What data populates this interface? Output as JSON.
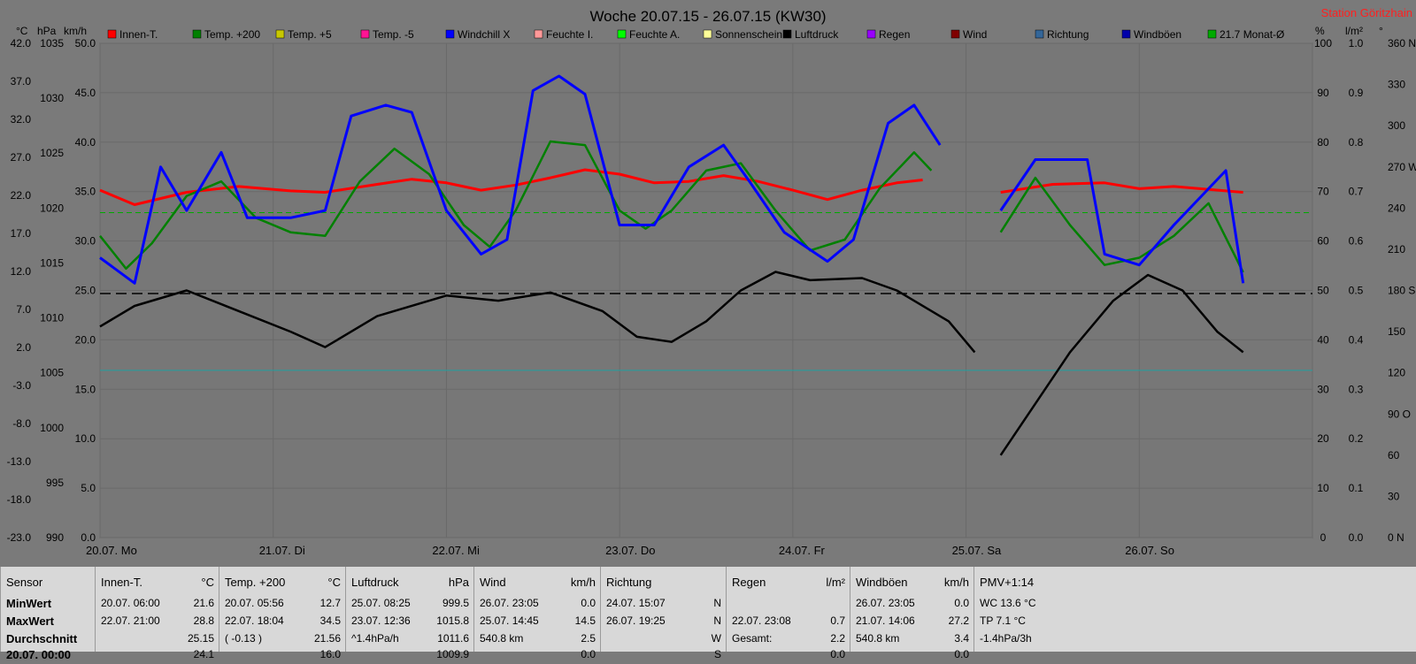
{
  "chart_data": {
    "type": "line",
    "title": "Woche 20.07.15 - 26.07.15 (KW30)",
    "station": "Station Göritzhain",
    "axis_units": {
      "left1": "°C",
      "left2": "hPa",
      "left3": "km/h",
      "right1": "%",
      "right2": "l/m²",
      "right3": "°"
    },
    "left_temp_ticks": [
      "42.0",
      "37.0",
      "32.0",
      "27.0",
      "22.0",
      "17.0",
      "12.0",
      "7.0",
      "2.0",
      "-3.0",
      "-8.0",
      "-13.0",
      "-18.0",
      "-23.0"
    ],
    "left_hpa_ticks": [
      "1035",
      "1030",
      "1025",
      "1020",
      "1015",
      "1010",
      "1005",
      "1000",
      "995",
      "990"
    ],
    "left_kmh_ticks": [
      "50.0",
      "45.0",
      "40.0",
      "35.0",
      "30.0",
      "25.0",
      "20.0",
      "15.0",
      "10.0",
      "5.0",
      "0.0"
    ],
    "right_pct_ticks": [
      "100",
      "90",
      "80",
      "70",
      "60",
      "50",
      "40",
      "30",
      "20",
      "10",
      "0"
    ],
    "right_rain_ticks": [
      "1.0",
      "0.9",
      "0.8",
      "0.7",
      "0.6",
      "0.5",
      "0.4",
      "0.3",
      "0.2",
      "0.1",
      "0.0"
    ],
    "right_dir_ticks": [
      "360 N",
      "330",
      "300",
      "270 W",
      "240",
      "210",
      "180 S",
      "150",
      "120",
      "90 O",
      "60",
      "30",
      "0 N"
    ],
    "x_labels": [
      "20.07. Mo",
      "21.07. Di",
      "22.07. Mi",
      "23.07. Do",
      "24.07. Fr",
      "25.07. Sa",
      "26.07. So"
    ],
    "temp_range": [
      -23,
      45
    ],
    "hpa_range": [
      990,
      1038
    ],
    "ref_lines": {
      "monthly_mean_temp": 21.7,
      "hpa_mean": 1013.7,
      "temp_zero": 0
    },
    "legend": [
      {
        "name": "Innen-T.",
        "color": "#ff0000"
      },
      {
        "name": "Temp. +200",
        "color": "#008000"
      },
      {
        "name": "Temp. +5",
        "color": "#c8c800"
      },
      {
        "name": "Temp. -5",
        "color": "#ff1493"
      },
      {
        "name": "Windchill X",
        "color": "#0000ff"
      },
      {
        "name": "Feuchte I.",
        "color": "#ff9999"
      },
      {
        "name": "Feuchte A.",
        "color": "#00ff00"
      },
      {
        "name": "Sonnenschein",
        "color": "#ffff99"
      },
      {
        "name": "Luftdruck",
        "color": "#000000"
      },
      {
        "name": "Regen",
        "color": "#9900ff"
      },
      {
        "name": "Wind",
        "color": "#800000"
      },
      {
        "name": "Richtung",
        "color": "#336699"
      },
      {
        "name": "Windböen",
        "color": "#0000aa"
      },
      {
        "name": "21.7 Monat-Ø",
        "color": "#00aa00"
      }
    ],
    "series": [
      {
        "name": "Innen-T.",
        "unit": "°C",
        "points": [
          [
            0,
            24.8
          ],
          [
            0.2,
            22.8
          ],
          [
            0.5,
            24.5
          ],
          [
            0.8,
            25.3
          ],
          [
            1.1,
            24.7
          ],
          [
            1.3,
            24.5
          ],
          [
            1.6,
            25.6
          ],
          [
            1.8,
            26.3
          ],
          [
            2.0,
            25.8
          ],
          [
            2.2,
            24.8
          ],
          [
            2.4,
            25.5
          ],
          [
            2.6,
            26.5
          ],
          [
            2.8,
            27.6
          ],
          [
            3.0,
            27.0
          ],
          [
            3.2,
            25.8
          ],
          [
            3.4,
            26.0
          ],
          [
            3.6,
            26.8
          ],
          [
            3.8,
            26.0
          ],
          [
            4.0,
            24.8
          ],
          [
            4.2,
            23.5
          ],
          [
            4.4,
            24.8
          ],
          [
            4.6,
            25.8
          ],
          [
            4.75,
            26.2
          ],
          [
            5.2,
            null
          ],
          [
            5.2,
            24.5
          ],
          [
            5.5,
            25.6
          ],
          [
            5.8,
            25.8
          ],
          [
            6.0,
            25.0
          ],
          [
            6.2,
            25.3
          ],
          [
            6.5,
            24.7
          ],
          [
            6.6,
            24.5
          ]
        ]
      },
      {
        "name": "Temp. +200",
        "unit": "°C",
        "points": [
          [
            0,
            18.5
          ],
          [
            0.15,
            14.0
          ],
          [
            0.3,
            17.5
          ],
          [
            0.5,
            24.0
          ],
          [
            0.7,
            26.0
          ],
          [
            0.9,
            21.0
          ],
          [
            1.1,
            19.0
          ],
          [
            1.3,
            18.5
          ],
          [
            1.5,
            26.0
          ],
          [
            1.7,
            30.5
          ],
          [
            1.9,
            27.0
          ],
          [
            2.1,
            20.0
          ],
          [
            2.25,
            17.0
          ],
          [
            2.4,
            22.0
          ],
          [
            2.6,
            31.5
          ],
          [
            2.8,
            31.0
          ],
          [
            3.0,
            22.0
          ],
          [
            3.15,
            19.5
          ],
          [
            3.3,
            22.0
          ],
          [
            3.5,
            27.5
          ],
          [
            3.7,
            28.5
          ],
          [
            3.9,
            22.0
          ],
          [
            4.1,
            16.5
          ],
          [
            4.3,
            18.0
          ],
          [
            4.5,
            25.0
          ],
          [
            4.7,
            30.0
          ],
          [
            4.8,
            27.5
          ],
          [
            5.2,
            null
          ],
          [
            5.2,
            19.0
          ],
          [
            5.4,
            26.5
          ],
          [
            5.6,
            20.0
          ],
          [
            5.8,
            14.5
          ],
          [
            6.0,
            15.5
          ],
          [
            6.2,
            18.5
          ],
          [
            6.4,
            23.0
          ],
          [
            6.6,
            13.5
          ]
        ]
      },
      {
        "name": "Windchill X",
        "unit": "°C",
        "points": [
          [
            0,
            15.5
          ],
          [
            0.2,
            12.0
          ],
          [
            0.35,
            28.0
          ],
          [
            0.5,
            22.0
          ],
          [
            0.7,
            30.0
          ],
          [
            0.85,
            21.0
          ],
          [
            1.1,
            21.0
          ],
          [
            1.3,
            22.0
          ],
          [
            1.45,
            35.0
          ],
          [
            1.65,
            36.5
          ],
          [
            1.8,
            35.5
          ],
          [
            2.0,
            22.0
          ],
          [
            2.2,
            16.0
          ],
          [
            2.35,
            18.0
          ],
          [
            2.5,
            38.5
          ],
          [
            2.65,
            40.5
          ],
          [
            2.8,
            38.0
          ],
          [
            3.0,
            20.0
          ],
          [
            3.2,
            20.0
          ],
          [
            3.4,
            28.0
          ],
          [
            3.6,
            31.0
          ],
          [
            3.75,
            26.0
          ],
          [
            3.95,
            19.0
          ],
          [
            4.2,
            15.0
          ],
          [
            4.35,
            18.0
          ],
          [
            4.55,
            34.0
          ],
          [
            4.7,
            36.5
          ],
          [
            4.85,
            31.0
          ],
          [
            5.2,
            null
          ],
          [
            5.2,
            22.0
          ],
          [
            5.4,
            29.0
          ],
          [
            5.7,
            29.0
          ],
          [
            5.8,
            16.0
          ],
          [
            6.0,
            14.5
          ],
          [
            6.2,
            20.0
          ],
          [
            6.4,
            25.0
          ],
          [
            6.5,
            27.5
          ],
          [
            6.6,
            12.0
          ]
        ]
      },
      {
        "name": "Luftdruck",
        "unit": "hPa",
        "points": [
          [
            0,
            1010.5
          ],
          [
            0.2,
            1012.5
          ],
          [
            0.5,
            1014
          ],
          [
            0.8,
            1012
          ],
          [
            1.1,
            1010
          ],
          [
            1.3,
            1008.5
          ],
          [
            1.6,
            1011.5
          ],
          [
            2.0,
            1013.5
          ],
          [
            2.3,
            1013
          ],
          [
            2.6,
            1013.8
          ],
          [
            2.9,
            1012
          ],
          [
            3.1,
            1009.5
          ],
          [
            3.3,
            1009
          ],
          [
            3.5,
            1011
          ],
          [
            3.7,
            1014
          ],
          [
            3.9,
            1015.8
          ],
          [
            4.1,
            1015
          ],
          [
            4.4,
            1015.2
          ],
          [
            4.6,
            1014
          ],
          [
            4.9,
            1011
          ],
          [
            5.05,
            1008
          ],
          [
            5.2,
            null
          ],
          [
            5.2,
            998
          ],
          [
            5.4,
            1003
          ],
          [
            5.6,
            1008
          ],
          [
            5.85,
            1013
          ],
          [
            6.05,
            1015.5
          ],
          [
            6.25,
            1014
          ],
          [
            6.45,
            1010
          ],
          [
            6.6,
            1008
          ]
        ]
      }
    ]
  },
  "table": {
    "columns": [
      {
        "title": "Sensor",
        "unit": "",
        "rows": [
          [
            "MinWert",
            ""
          ],
          [
            "MaxWert",
            ""
          ],
          [
            "Durchschnitt",
            ""
          ],
          [
            "20.07. 00:00",
            ""
          ]
        ]
      },
      {
        "title": "Innen-T.",
        "unit": "°C",
        "rows": [
          [
            "20.07.  06:00",
            "21.6"
          ],
          [
            "22.07.  21:00",
            "28.8"
          ],
          [
            "",
            "25.15"
          ],
          [
            "",
            "24.1"
          ]
        ]
      },
      {
        "title": "Temp. +200",
        "unit": "°C",
        "rows": [
          [
            "20.07.  05:56",
            "12.7"
          ],
          [
            "22.07.  18:04",
            "34.5"
          ],
          [
            "( -0.13 )",
            "21.56"
          ],
          [
            "",
            "16.0"
          ]
        ]
      },
      {
        "title": "Luftdruck",
        "unit": "hPa",
        "rows": [
          [
            "25.07.  08:25",
            "999.5"
          ],
          [
            "23.07.  12:36",
            "1015.8"
          ],
          [
            "^1.4hPa/h",
            "1011.6"
          ],
          [
            "",
            "1009.9"
          ]
        ]
      },
      {
        "title": "Wind",
        "unit": "km/h",
        "rows": [
          [
            "26.07.  23:05",
            "0.0"
          ],
          [
            "25.07.  14:45",
            "14.5"
          ],
          [
            "540.8 km",
            "2.5"
          ],
          [
            "",
            "0.0"
          ]
        ]
      },
      {
        "title": "Richtung",
        "unit": "",
        "rows": [
          [
            "24.07.  15:07",
            "N"
          ],
          [
            "26.07.  19:25",
            "N"
          ],
          [
            "",
            "W"
          ],
          [
            "",
            "S"
          ]
        ]
      },
      {
        "title": "Regen",
        "unit": "l/m²",
        "rows": [
          [
            "",
            ""
          ],
          [
            "22.07.  23:08",
            "0.7"
          ],
          [
            "Gesamt:",
            "2.2"
          ],
          [
            "",
            "0.0"
          ]
        ]
      },
      {
        "title": "Windböen",
        "unit": "km/h",
        "rows": [
          [
            "26.07.  23:05",
            "0.0"
          ],
          [
            "21.07.  14:06",
            "27.2"
          ],
          [
            "540.8 km",
            "3.4"
          ],
          [
            "",
            "0.0"
          ]
        ]
      },
      {
        "title": "PMV+1:14",
        "unit": "",
        "rows": [
          [
            "WC 13.6 °C",
            ""
          ],
          [
            "TP 7.1 °C",
            ""
          ],
          [
            "-1.4hPa/3h",
            ""
          ],
          [
            "",
            ""
          ]
        ]
      }
    ]
  }
}
